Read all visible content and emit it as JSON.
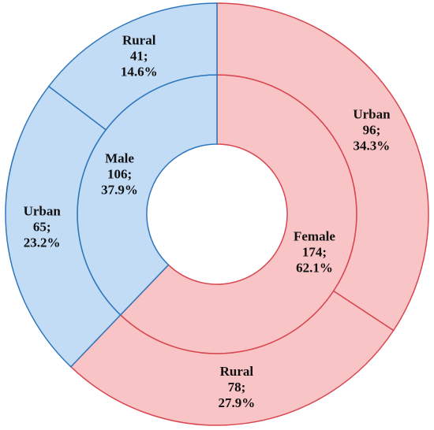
{
  "chart_data": {
    "type": "sunburst",
    "series": [
      {
        "name": "Female",
        "value": 174,
        "value_label": "174;",
        "percent_label": "62.1%",
        "color": "#f8c4c6",
        "border": "#d8464f",
        "children": [
          {
            "name": "Urban",
            "value": 96,
            "value_label": "96;",
            "percent_label": "34.3%"
          },
          {
            "name": "Rural",
            "value": 78,
            "value_label": "78;",
            "percent_label": "27.9%"
          }
        ]
      },
      {
        "name": "Male",
        "value": 106,
        "value_label": "106;",
        "percent_label": "37.9%",
        "color": "#c2dcf6",
        "border": "#2f77bd",
        "children": [
          {
            "name": "Urban",
            "value": 65,
            "value_label": "65;",
            "percent_label": "23.2%"
          },
          {
            "name": "Rural",
            "value": 41,
            "value_label": "41;",
            "percent_label": "14.6%"
          }
        ]
      }
    ]
  }
}
